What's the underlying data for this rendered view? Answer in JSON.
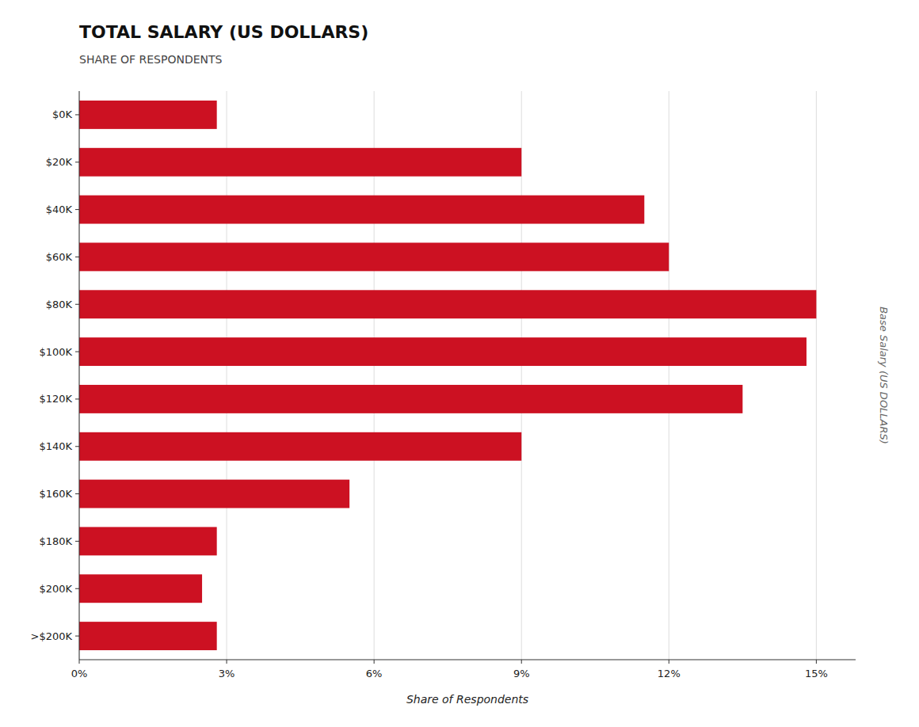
{
  "chart_data": {
    "type": "bar",
    "orientation": "horizontal",
    "title": "TOTAL SALARY (US DOLLARS)",
    "subtitle": "SHARE OF RESPONDENTS",
    "xlabel": "Share of Respondents",
    "ylabel": "Base Salary  (US DOLLARS)",
    "categories": [
      "$0K",
      "$20K",
      "$40K",
      "$60K",
      "$80K",
      "$100K",
      "$120K",
      "$140K",
      "$160K",
      "$180K",
      "$200K",
      ">$200K"
    ],
    "values": [
      2.8,
      9.0,
      11.5,
      12.0,
      15.0,
      14.8,
      13.5,
      9.0,
      5.5,
      2.8,
      2.5,
      2.8
    ],
    "color": "#cc1122",
    "xlim": [
      0,
      15.8
    ],
    "xticks": [
      {
        "value": 0,
        "label": "0%"
      },
      {
        "value": 3,
        "label": "3%"
      },
      {
        "value": 6,
        "label": "6%"
      },
      {
        "value": 9,
        "label": "9%"
      },
      {
        "value": 12,
        "label": "12%"
      },
      {
        "value": 15,
        "label": "15%"
      }
    ],
    "grid": true
  }
}
